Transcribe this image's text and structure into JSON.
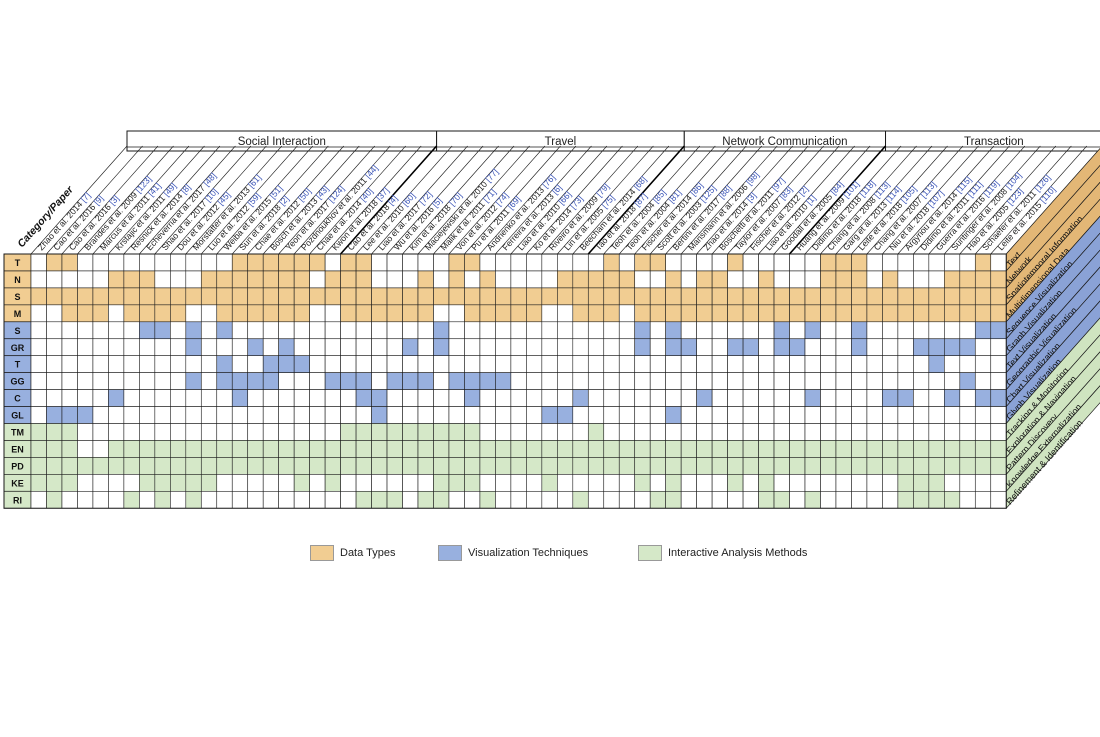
{
  "corner_label": "Category/Paper",
  "colors": {
    "data_types": "#f1cd92",
    "visualization": "#98b0df",
    "interactive": "#d5e8c8",
    "side_data": "#e3b776",
    "side_vis": "#8aa2d6",
    "side_int": "#cfe4c0",
    "grid": "#1a1a1a",
    "link": "#3b55b8"
  },
  "groups": [
    {
      "label": "Social Interaction",
      "count": 20
    },
    {
      "label": "Travel",
      "count": 16
    },
    {
      "label": "Network Communication",
      "count": 13
    },
    {
      "label": "Transaction",
      "count": 14
    }
  ],
  "papers": [
    {
      "name": "Zhao et al. 2014",
      "ref": "7"
    },
    {
      "name": "Cao et al. 2016",
      "ref": "9"
    },
    {
      "name": "Cao et al. 2016",
      "ref": "3"
    },
    {
      "name": "Brandes et al. 2009",
      "ref": "123"
    },
    {
      "name": "Marcus et al. 2011",
      "ref": "41"
    },
    {
      "name": "Krstajic et al. 2011",
      "ref": "49"
    },
    {
      "name": "Resnick et al. 2014",
      "ref": "8"
    },
    {
      "name": "Echeverria et al. 2017",
      "ref": "48"
    },
    {
      "name": "Shao et al. 2017",
      "ref": "10"
    },
    {
      "name": "Dou et al. 2012",
      "ref": "45"
    },
    {
      "name": "Morstatter et al. 2013",
      "ref": "61"
    },
    {
      "name": "Luo et al. 2012",
      "ref": "59"
    },
    {
      "name": "Weiba et al. 2015",
      "ref": "51"
    },
    {
      "name": "Sun et al. 2018",
      "ref": "2"
    },
    {
      "name": "Chae et al. 2012",
      "ref": "50"
    },
    {
      "name": "Bosch et al. 2013",
      "ref": "43"
    },
    {
      "name": "Yeon et al. 2017",
      "ref": "124"
    },
    {
      "name": "Pozdnoukhov et al. 2011",
      "ref": "44"
    },
    {
      "name": "Chae et al. 2014",
      "ref": "40"
    },
    {
      "name": "Kwon et al. 2018",
      "ref": "37"
    },
    {
      "name": "Cao et al. 2018",
      "ref": "4"
    },
    {
      "name": "Lee et al. 2010",
      "ref": "60"
    },
    {
      "name": "Liao et al. 2017",
      "ref": "72"
    },
    {
      "name": "Wu et al. 2016",
      "ref": "5"
    },
    {
      "name": "Kim et al. 2018",
      "ref": "70"
    },
    {
      "name": "Maciejewski et al. 2010",
      "ref": "77"
    },
    {
      "name": "Malik et al. 2011",
      "ref": "71"
    },
    {
      "name": "Von et al. 2012",
      "ref": "74"
    },
    {
      "name": "Pu et al. 2011",
      "ref": "69"
    },
    {
      "name": "Andrienko et al. 2013",
      "ref": "76"
    },
    {
      "name": "Ferreira et al. 2013",
      "ref": "6"
    },
    {
      "name": "Liao et al. 2010",
      "ref": "66"
    },
    {
      "name": "Ko et al. 2014",
      "ref": "73"
    },
    {
      "name": "Riveiro et al. 2009",
      "ref": "79"
    },
    {
      "name": "Lin et al. 2005",
      "ref": "75"
    },
    {
      "name": "Beecham et al. 2014",
      "ref": "68"
    },
    {
      "name": "Tao et al. 2018",
      "ref": "87"
    },
    {
      "name": "Teoh et al. 2004",
      "ref": "85"
    },
    {
      "name": "Teoh et al. 2004",
      "ref": "81"
    },
    {
      "name": "Fischer et al. 2014",
      "ref": "86"
    },
    {
      "name": "Scott et al. 2003",
      "ref": "125"
    },
    {
      "name": "Bertini et al. 2017",
      "ref": "88"
    },
    {
      "name": "Mansmann et al. 2006",
      "ref": "98"
    },
    {
      "name": "Zhao et al. 2014",
      "ref": "3"
    },
    {
      "name": "Boschetti et al. 2011",
      "ref": "97"
    },
    {
      "name": "Taylor et al. 2007",
      "ref": "83"
    },
    {
      "name": "Fischer et al. 2012",
      "ref": "2"
    },
    {
      "name": "Liao et al. 2010",
      "ref": "1"
    },
    {
      "name": "Goodall et al. 2005",
      "ref": "84"
    },
    {
      "name": "Huang et al. 2009",
      "ref": "101"
    },
    {
      "name": "Didimo et al. 2018",
      "ref": "118"
    },
    {
      "name": "Chang et al. 2008",
      "ref": "113"
    },
    {
      "name": "Garg et al. 2013",
      "ref": "114"
    },
    {
      "name": "Leite et al. 2018",
      "ref": "105"
    },
    {
      "name": "Chang et al. 2007",
      "ref": "113"
    },
    {
      "name": "Niu et al. 2018",
      "ref": "107"
    },
    {
      "name": "Argyriou et al. 2014",
      "ref": "115"
    },
    {
      "name": "Didimo et al. 2011",
      "ref": "111"
    },
    {
      "name": "Guerra et al. 2016",
      "ref": "119"
    },
    {
      "name": "Suntinger et al. 2008",
      "ref": "104"
    },
    {
      "name": "Hao et al. 2005",
      "ref": "123"
    },
    {
      "name": "Schaefer et al. 2011",
      "ref": "126"
    },
    {
      "name": "Leite et al. 2015",
      "ref": "110"
    }
  ],
  "rows": [
    {
      "code": "T",
      "label": "Text",
      "section": "data_types",
      "cells": "011000000000011111101100000110000000010110000100000111000000010"
    },
    {
      "code": "N",
      "label": "Network",
      "section": "data_types",
      "cells": "000001110001111111011100010101000011111001011001000111010001111"
    },
    {
      "code": "S",
      "label": "Spatiotemporal Information",
      "section": "data_types",
      "cells": "111111111111111111111111111111111111111111111111111111111111111"
    },
    {
      "code": "M",
      "label": "Multidimensional Data",
      "section": "data_types",
      "cells": "001110111100111111001111110011111001110111111111111111111111111"
    },
    {
      "code": "S",
      "label": "Sequence Visualization",
      "section": "visualization",
      "cells": "000000011010100000000000001000000000000101000000101001000000011"
    },
    {
      "code": "GR",
      "label": "Graph Visualization",
      "section": "visualization",
      "cells": "000000000010001010000000101000000000000101100110110001000111100"
    },
    {
      "code": "T",
      "label": "Text Visualization",
      "section": "visualization",
      "cells": "000000000000100111000000000000000000000000000000000000000010000"
    },
    {
      "code": "GG",
      "label": "Geographic Visualization",
      "section": "visualization",
      "cells": "000000000010111100011101110111100000000000000000000000000000100"
    },
    {
      "code": "C",
      "label": "Chart Visualization",
      "section": "visualization",
      "cells": "000001000000010000000110000010000001000000010000001000011001011"
    },
    {
      "code": "GL",
      "label": "Glyph Visualization",
      "section": "visualization",
      "cells": "011100000000000000000010000000000110000001000000000000000000000"
    },
    {
      "code": "TM",
      "label": "Tracking & Monitoring",
      "section": "interactive",
      "cells": "111000000000000000001111111110000000100000000000000000000000000"
    },
    {
      "code": "EN",
      "label": "Exploration & Navigation",
      "section": "interactive",
      "cells": "111001111111111111111111111111111111111111111111111111111111111"
    },
    {
      "code": "PD",
      "label": "Pattern Discovery",
      "section": "interactive",
      "cells": "111111111111111111111111111111111111111111111111111111111111111"
    },
    {
      "code": "KE",
      "label": "Knowledge Externalization",
      "section": "interactive",
      "cells": "111000011111000001010000001110000100000101000101000000001110000"
    },
    {
      "code": "RI",
      "label": "Refinement & Identification",
      "section": "interactive",
      "cells": "010000101010000000000111011001000001000011000001101000001111000"
    }
  ],
  "legend": [
    {
      "label": "Data Types",
      "color": "#f1cd92"
    },
    {
      "label": "Visualization Techniques",
      "color": "#98b0df"
    },
    {
      "label": "Interactive Analysis Methods",
      "color": "#d5e8c8"
    }
  ]
}
